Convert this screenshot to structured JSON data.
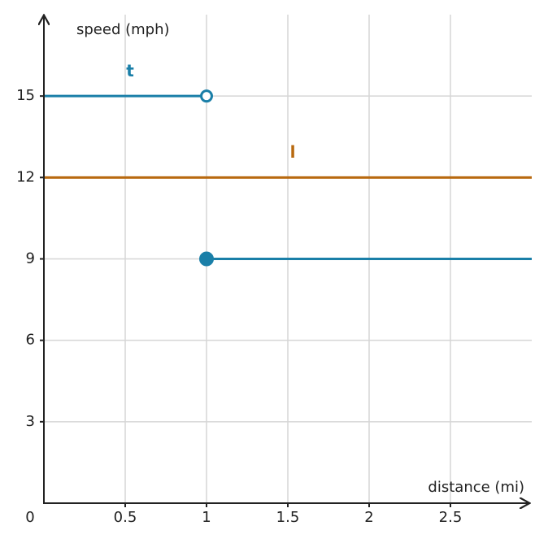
{
  "chart_data": {
    "type": "line",
    "xlabel": "distance (mi)",
    "ylabel": "speed (mph)",
    "origin_label": 0,
    "xlim": [
      0,
      3
    ],
    "ylim": [
      0,
      18
    ],
    "xticks": [
      0.5,
      1,
      1.5,
      2,
      2.5
    ],
    "yticks": [
      3,
      6,
      9,
      12,
      15
    ],
    "grid": true,
    "series": [
      {
        "name": "t",
        "color": "#1a7fa8",
        "x": [
          0,
          1,
          1,
          1,
          3
        ],
        "values": [
          15,
          15,
          null,
          9,
          9
        ],
        "markers": [
          {
            "x": 1,
            "y": 15,
            "filled": false
          },
          {
            "x": 1,
            "y": 9,
            "filled": true
          }
        ]
      },
      {
        "name": "l",
        "color": "#b8690f",
        "x": [
          0,
          3
        ],
        "values": [
          12,
          12
        ]
      }
    ]
  }
}
